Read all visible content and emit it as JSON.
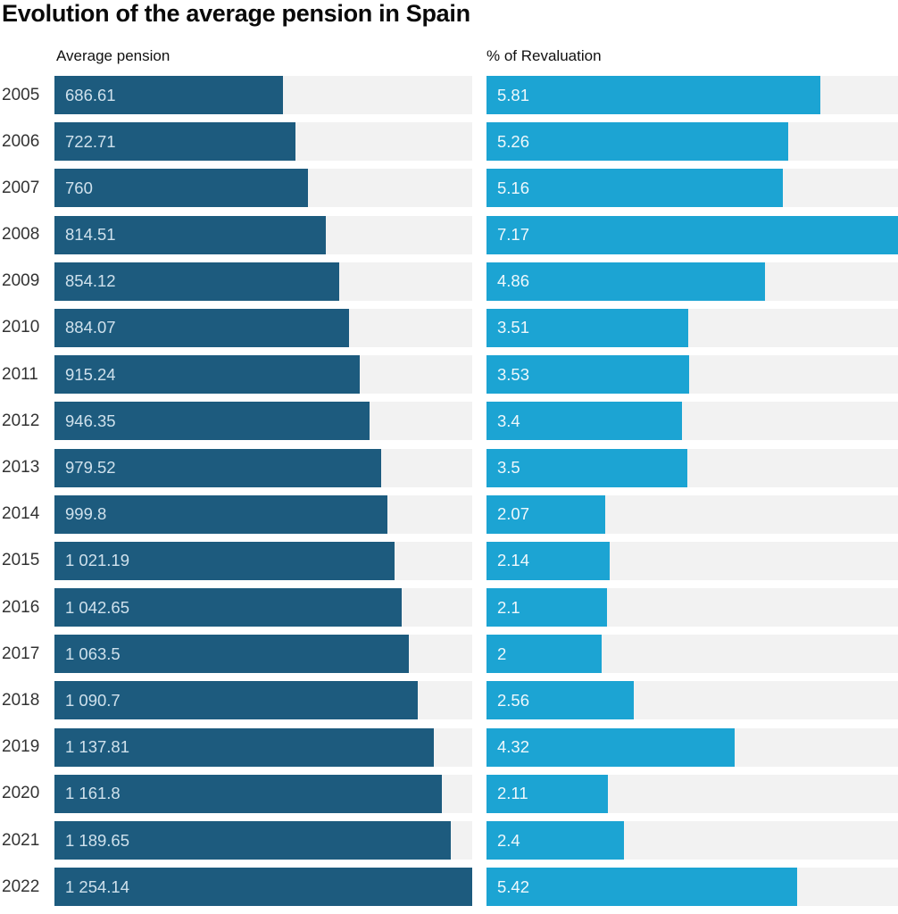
{
  "title": "Evolution of the average pension in Spain",
  "columns": {
    "left": "Average pension",
    "right": "% of Revaluation"
  },
  "colors": {
    "pension_bar": "#1d5b7e",
    "revaluation_bar": "#1ca4d3",
    "track": "#f2f2f2",
    "title_text": "#0a0a0a",
    "year_text": "#333333",
    "pension_value_text": "#cfe1ec",
    "revaluation_value_text": "#eef8fc",
    "background": "#ffffff"
  },
  "chart_data": {
    "type": "bar",
    "orientation": "horizontal",
    "title": "Evolution of the average pension in Spain",
    "grid": false,
    "legend": false,
    "value_labels": "inside-start",
    "categories": [
      "2005",
      "2006",
      "2007",
      "2008",
      "2009",
      "2010",
      "2011",
      "2012",
      "2013",
      "2014",
      "2015",
      "2016",
      "2017",
      "2018",
      "2019",
      "2020",
      "2021",
      "2022"
    ],
    "series": [
      {
        "name": "Average pension",
        "color": "#1d5b7e",
        "xlim": [
          0,
          1254.14
        ],
        "values": [
          686.61,
          722.71,
          760,
          814.51,
          854.12,
          884.07,
          915.24,
          946.35,
          979.52,
          999.8,
          1021.19,
          1042.65,
          1063.5,
          1090.7,
          1137.81,
          1161.8,
          1189.65,
          1254.14
        ],
        "labels": [
          "686.61",
          "722.71",
          "760",
          "814.51",
          "854.12",
          "884.07",
          "915.24",
          "946.35",
          "979.52",
          "999.8",
          "1 021.19",
          "1 042.65",
          "1 063.5",
          "1 090.7",
          "1 137.81",
          "1 161.8",
          "1 189.65",
          "1 254.14"
        ]
      },
      {
        "name": "% of Revaluation",
        "color": "#1ca4d3",
        "xlim": [
          0,
          7.17
        ],
        "values": [
          5.81,
          5.26,
          5.16,
          7.17,
          4.86,
          3.51,
          3.53,
          3.4,
          3.5,
          2.07,
          2.14,
          2.1,
          2,
          2.56,
          4.32,
          2.11,
          2.4,
          5.42
        ],
        "labels": [
          "5.81",
          "5.26",
          "5.16",
          "7.17",
          "4.86",
          "3.51",
          "3.53",
          "3.4",
          "3.5",
          "2.07",
          "2.14",
          "2.1",
          "2",
          "2.56",
          "4.32",
          "2.11",
          "2.4",
          "5.42"
        ]
      }
    ]
  }
}
